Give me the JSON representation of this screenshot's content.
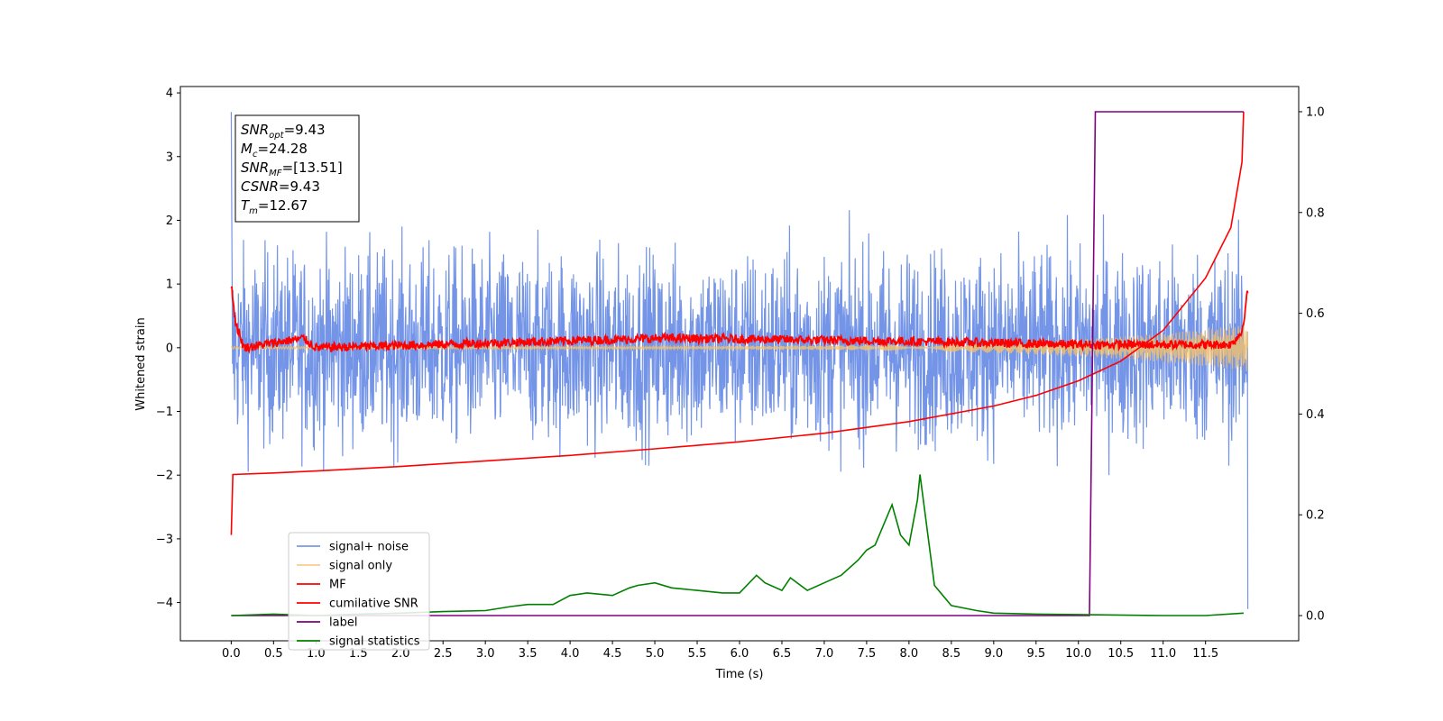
{
  "chart_data": {
    "type": "line",
    "title": "",
    "xlabel": "Time (s)",
    "ylabel_left": "Whitened strain",
    "ylabel_right": "",
    "xlim": [
      -0.6,
      12.6
    ],
    "ylim_left": [
      -4.6,
      4.1
    ],
    "ylim_right": [
      -0.05,
      1.05
    ],
    "x_ticks": [
      0.0,
      0.5,
      1.0,
      1.5,
      2.0,
      2.5,
      3.0,
      3.5,
      4.0,
      4.5,
      5.0,
      5.5,
      6.0,
      6.5,
      7.0,
      7.5,
      8.0,
      8.5,
      9.0,
      9.5,
      10.0,
      10.5,
      11.0,
      11.5
    ],
    "x_tick_labels": [
      "0.0",
      "0.5",
      "1.0",
      "1.5",
      "2.0",
      "2.5",
      "3.0",
      "3.5",
      "4.0",
      "4.5",
      "5.0",
      "5.5",
      "6.0",
      "6.5",
      "7.0",
      "7.5",
      "8.0",
      "8.5",
      "9.0",
      "9.5",
      "10.0",
      "10.5",
      "11.0",
      "11.5"
    ],
    "y_left_ticks": [
      -4,
      -3,
      -2,
      -1,
      0,
      1,
      2,
      3,
      4
    ],
    "y_left_tick_labels": [
      "−4",
      "−3",
      "−2",
      "−1",
      "0",
      "1",
      "2",
      "3",
      "4"
    ],
    "y_right_ticks": [
      0.0,
      0.2,
      0.4,
      0.6,
      0.8,
      1.0
    ],
    "y_right_tick_labels": [
      "0.0",
      "0.2",
      "0.4",
      "0.6",
      "0.8",
      "1.0"
    ],
    "annotation": {
      "snr_opt": {
        "base": "SNR",
        "sub": "opt",
        "value": "=9.43"
      },
      "mc": {
        "base": "M",
        "sub": "c",
        "value": "=24.28"
      },
      "snr_mf": {
        "base": "SNR",
        "sub": "MF",
        "value": "=[13.51]"
      },
      "csnr": {
        "base": "CSNR",
        "sub": "",
        "value": "=9.43"
      },
      "tm": {
        "base": "T",
        "sub": "m",
        "value": "=12.67"
      }
    },
    "legend": {
      "placement": "lower-left",
      "entries": [
        "signal+ noise",
        "signal only",
        "MF",
        "cumilative SNR",
        "label",
        "signal statistics"
      ]
    },
    "series": [
      {
        "name": "signal+ noise",
        "axis": "left",
        "color": "#6c8ee6",
        "kind": "noise",
        "t_range": [
          0.0,
          12.0
        ],
        "amplitude_sd": 0.75
      },
      {
        "name": "signal only",
        "axis": "left",
        "color": "#f5c26b",
        "kind": "chirp",
        "t_range": [
          0.0,
          12.0
        ],
        "envelope_end": 0.35
      },
      {
        "name": "MF",
        "axis": "left",
        "color": "#ff0000",
        "kind": "mf",
        "points": [
          [
            0.0,
            1.0
          ],
          [
            0.05,
            0.4
          ],
          [
            0.15,
            0.0
          ],
          [
            0.85,
            0.15
          ],
          [
            1.0,
            0.0
          ],
          [
            5.1,
            0.15
          ],
          [
            8.1,
            0.1
          ],
          [
            10.0,
            0.05
          ],
          [
            11.8,
            0.05
          ],
          [
            11.93,
            0.25
          ],
          [
            12.0,
            0.9
          ]
        ]
      },
      {
        "name": "cumilative SNR",
        "axis": "right",
        "color": "#ff0000",
        "x": [
          0.0,
          0.02,
          0.5,
          1.0,
          2.0,
          3.0,
          4.0,
          5.0,
          6.0,
          7.0,
          8.0,
          9.0,
          9.5,
          10.0,
          10.5,
          11.0,
          11.5,
          11.8,
          11.93,
          11.95
        ],
        "y": [
          0.16,
          0.28,
          0.283,
          0.287,
          0.296,
          0.307,
          0.318,
          0.331,
          0.345,
          0.362,
          0.385,
          0.416,
          0.437,
          0.466,
          0.505,
          0.566,
          0.67,
          0.77,
          0.9,
          1.0
        ]
      },
      {
        "name": "label",
        "axis": "right",
        "color": "#800080",
        "x": [
          0.0,
          10.13,
          10.2,
          11.95
        ],
        "y": [
          0.0,
          0.0,
          1.0,
          1.0
        ]
      },
      {
        "name": "signal statistics",
        "axis": "right",
        "color": "#008000",
        "x": [
          0.0,
          0.5,
          1.0,
          1.5,
          2.0,
          2.5,
          3.0,
          3.3,
          3.5,
          3.8,
          4.0,
          4.2,
          4.5,
          4.7,
          4.8,
          5.0,
          5.2,
          5.5,
          5.8,
          6.0,
          6.2,
          6.3,
          6.5,
          6.6,
          6.8,
          7.0,
          7.2,
          7.4,
          7.5,
          7.6,
          7.8,
          7.9,
          8.0,
          8.1,
          8.13,
          8.3,
          8.5,
          8.8,
          9.0,
          9.5,
          10.0,
          11.0,
          11.5,
          11.95
        ],
        "y": [
          0.0,
          0.003,
          0.0,
          0.003,
          0.005,
          0.008,
          0.01,
          0.018,
          0.022,
          0.022,
          0.04,
          0.045,
          0.04,
          0.055,
          0.06,
          0.065,
          0.055,
          0.05,
          0.045,
          0.045,
          0.08,
          0.065,
          0.05,
          0.075,
          0.05,
          0.065,
          0.08,
          0.11,
          0.13,
          0.14,
          0.22,
          0.16,
          0.14,
          0.23,
          0.28,
          0.06,
          0.02,
          0.01,
          0.005,
          0.003,
          0.002,
          0.0,
          0.0,
          0.005
        ]
      }
    ]
  }
}
